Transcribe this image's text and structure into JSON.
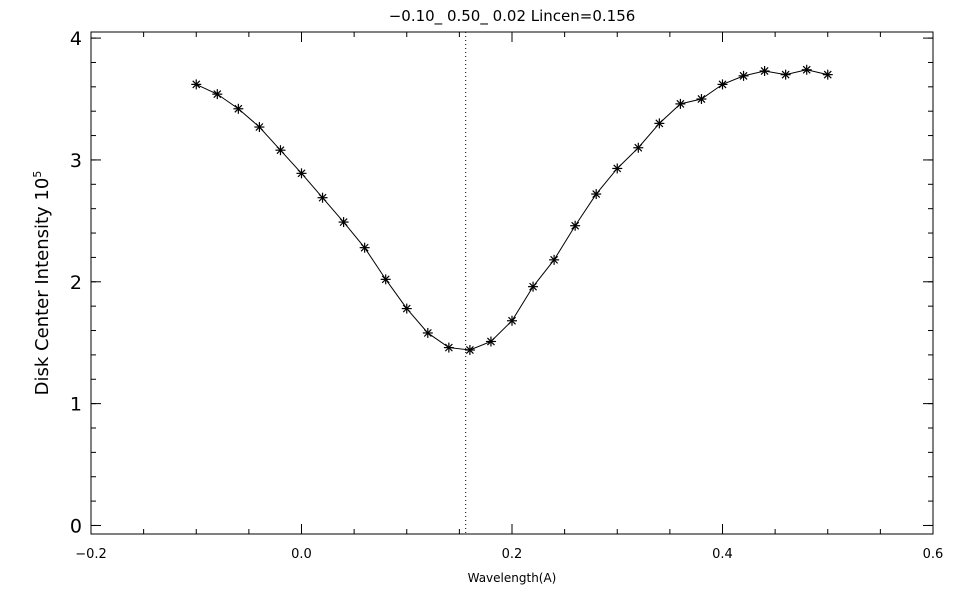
{
  "chart_data": {
    "type": "line",
    "title": "−0.10_ 0.50_ 0.02   Lincen=0.156",
    "xlabel": "Wavelength(A)",
    "ylabel": "Disk Center Intensity 10",
    "ylabel_exponent": "5",
    "xlim": [
      -0.2,
      0.6
    ],
    "ylim": [
      -0.07,
      4.05
    ],
    "x_tick_labels": [
      "−0.2",
      "0.0",
      "0.2",
      "0.4",
      "0.6"
    ],
    "y_tick_labels": [
      "0",
      "1",
      "2",
      "3",
      "4"
    ],
    "x_ticks": [
      -0.2,
      0.0,
      0.2,
      0.4,
      0.6
    ],
    "y_ticks": [
      0,
      1,
      2,
      3,
      4
    ],
    "marker": "asterisk",
    "reference_line": {
      "x": 0.156,
      "style": "dotted"
    },
    "x": [
      -0.1,
      -0.08,
      -0.06,
      -0.04,
      -0.02,
      0.0,
      0.02,
      0.04,
      0.06,
      0.08,
      0.1,
      0.12,
      0.14,
      0.16,
      0.18,
      0.2,
      0.22,
      0.24,
      0.26,
      0.28,
      0.3,
      0.32,
      0.34,
      0.36,
      0.38,
      0.4,
      0.42,
      0.44,
      0.46,
      0.48,
      0.5
    ],
    "y": [
      3.62,
      3.54,
      3.42,
      3.27,
      3.08,
      2.89,
      2.69,
      2.49,
      2.28,
      2.02,
      1.78,
      1.58,
      1.46,
      1.44,
      1.51,
      1.68,
      1.96,
      2.18,
      2.46,
      2.72,
      2.93,
      3.1,
      3.3,
      3.46,
      3.5,
      3.62,
      3.69,
      3.73,
      3.7,
      3.74,
      3.7
    ]
  }
}
